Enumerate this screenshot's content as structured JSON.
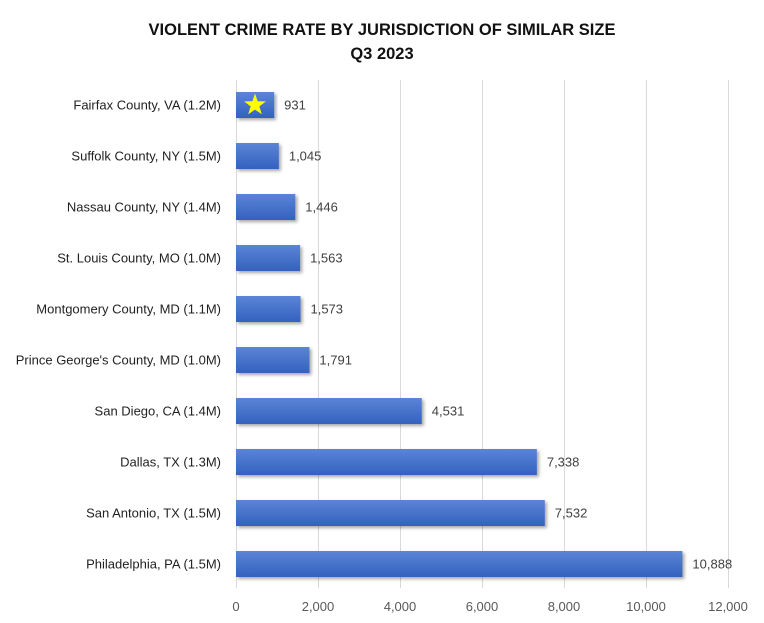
{
  "chart_data": {
    "type": "bar",
    "orientation": "horizontal",
    "title": "VIOLENT CRIME RATE BY JURISDICTION OF SIMILAR SIZE",
    "subtitle": "Q3 2023",
    "xlabel": "",
    "ylabel": "",
    "categories": [
      "Fairfax County, VA (1.2M)",
      "Suffolk County, NY (1.5M)",
      "Nassau County, NY (1.4M)",
      "St. Louis County, MO (1.0M)",
      "Montgomery County, MD (1.1M)",
      "Prince George's County, MD (1.0M)",
      "San Diego, CA (1.4M)",
      "Dallas, TX (1.3M)",
      "San Antonio, TX (1.5M)",
      "Philadelphia, PA (1.5M)"
    ],
    "values": [
      931,
      1045,
      1446,
      1563,
      1573,
      1791,
      4531,
      7338,
      7532,
      10888
    ],
    "value_labels": [
      "931",
      "1,045",
      "1,446",
      "1,563",
      "1,573",
      "1,791",
      "4,531",
      "7,338",
      "7,532",
      "10,888"
    ],
    "xlim": [
      0,
      12000
    ],
    "xticks": [
      0,
      2000,
      4000,
      6000,
      8000,
      10000,
      12000
    ],
    "xtick_labels": [
      "0",
      "2,000",
      "4,000",
      "6,000",
      "8,000",
      "10,000",
      "12,000"
    ],
    "grid": true,
    "legend": "none",
    "highlight": {
      "category": "Fairfax County, VA (1.2M)",
      "marker": "star-icon",
      "marker_color": "#FFFF00"
    },
    "bar_color": "#4472C4",
    "gridline_color": "#D9D9D9"
  }
}
